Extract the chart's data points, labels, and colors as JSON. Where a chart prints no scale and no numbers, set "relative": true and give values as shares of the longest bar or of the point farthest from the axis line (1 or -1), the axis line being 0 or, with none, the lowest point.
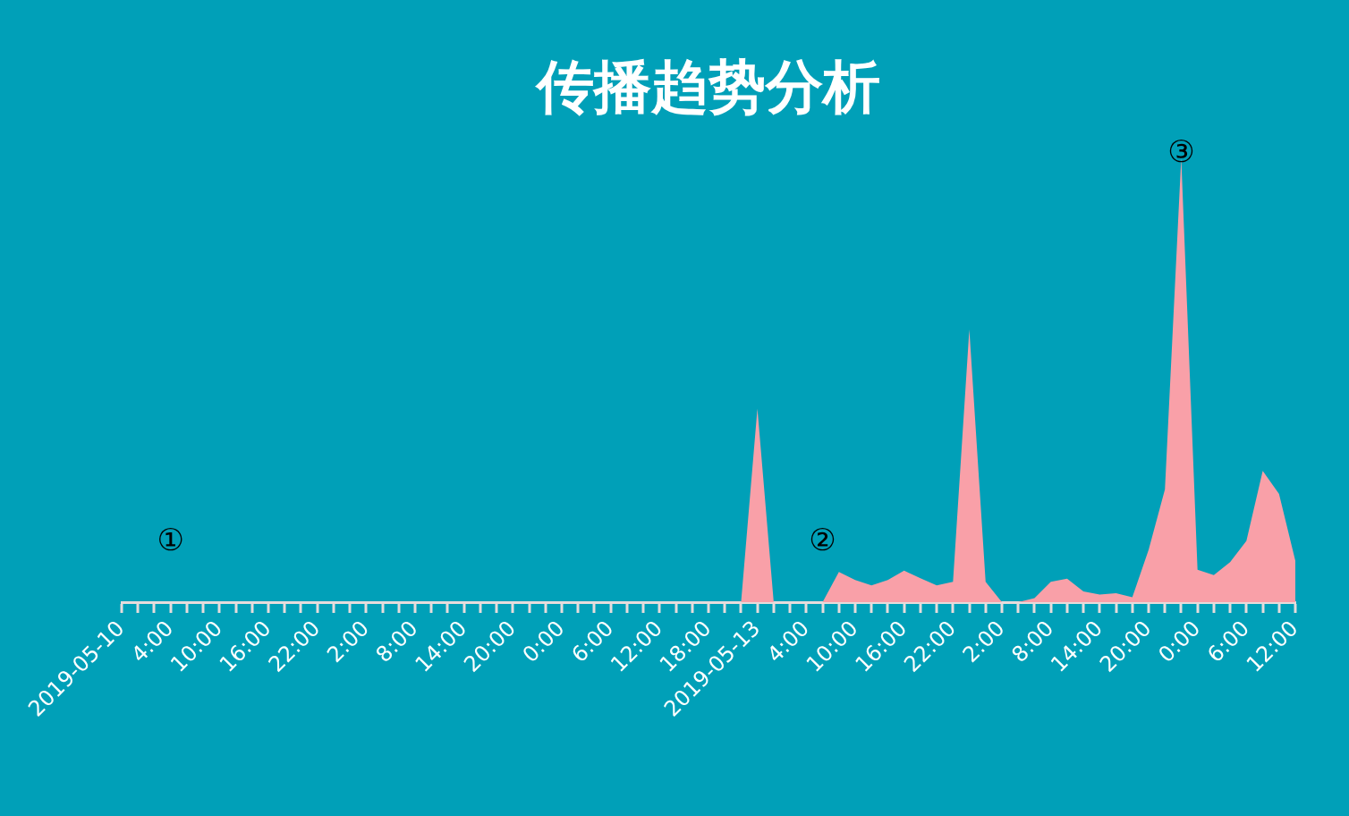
{
  "chart_data": {
    "type": "area",
    "title": "传播趋势分析",
    "relative": true,
    "categories": [
      "2019-05-10",
      null,
      null,
      "4:00",
      null,
      null,
      "10:00",
      null,
      null,
      "16:00",
      null,
      null,
      "22:00",
      null,
      null,
      "2:00",
      null,
      null,
      "8:00",
      null,
      null,
      "14:00",
      null,
      null,
      "20:00",
      null,
      null,
      "0:00",
      null,
      null,
      "6:00",
      null,
      null,
      "12:00",
      null,
      null,
      "18:00",
      null,
      null,
      "2019-05-13",
      null,
      null,
      "4:00",
      null,
      null,
      "10:00",
      null,
      null,
      "16:00",
      null,
      null,
      "22:00",
      null,
      null,
      "2:00",
      null,
      null,
      "8:00",
      null,
      null,
      "14:00",
      null,
      null,
      "20:00",
      null,
      null,
      "0:00",
      null,
      null,
      "6:00",
      null,
      null,
      "12:00"
    ],
    "series": [
      {
        "color": "#f9a0a8",
        "values": [
          0,
          0,
          0,
          0,
          0,
          0,
          0,
          0,
          0,
          0,
          0,
          0,
          0,
          0,
          0,
          0,
          0,
          0,
          0,
          0,
          0,
          0,
          0,
          0,
          0,
          0,
          0,
          0,
          0,
          0,
          0,
          0,
          0,
          0,
          0,
          0,
          0,
          0,
          0,
          0.436,
          0,
          0,
          0,
          0,
          0.068,
          0.05,
          0.038,
          0.05,
          0.071,
          0.054,
          0.038,
          0.046,
          0.614,
          0.046,
          0,
          0,
          0.009,
          0.046,
          0.053,
          0.024,
          0.017,
          0.02,
          0.011,
          0.118,
          0.254,
          1,
          0.073,
          0.061,
          0.09,
          0.138,
          0.296,
          0.244,
          0.093
        ]
      }
    ],
    "annotations": [
      "①",
      "②",
      "③"
    ],
    "legend": false,
    "grid": false
  }
}
